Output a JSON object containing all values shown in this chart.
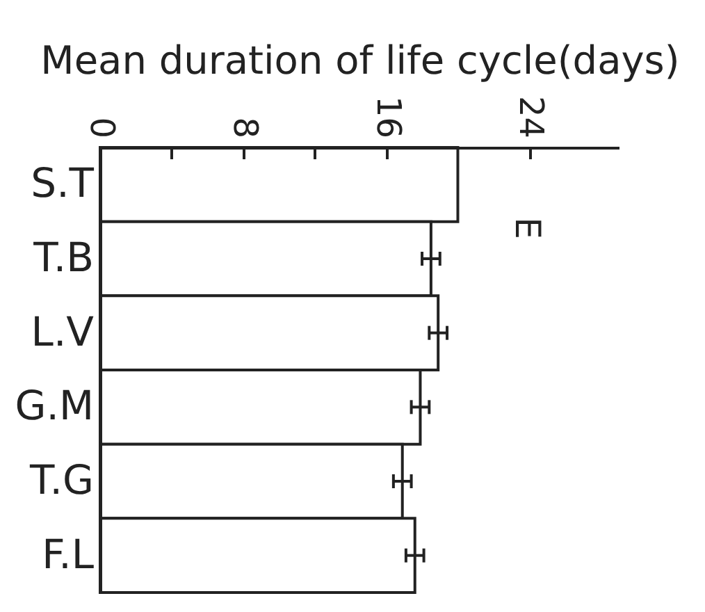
{
  "chart_data": {
    "type": "bar",
    "orientation": "horizontal",
    "xlabel": "Mean duration of life cycle(days)",
    "categories": [
      "S.T",
      "T.B",
      "L.V",
      "G.M",
      "T.G",
      "F.L"
    ],
    "values": [
      20.0,
      18.5,
      18.9,
      17.9,
      16.9,
      17.6
    ],
    "errors": [
      null,
      0.5,
      0.5,
      0.5,
      0.5,
      0.5
    ],
    "color": "#ffffff",
    "xlim": [
      0,
      29
    ],
    "xticks": [
      0,
      {
        "value": 4,
        "label": null
      },
      8,
      {
        "value": 12,
        "label": null
      },
      16,
      24
    ],
    "annotations": [
      "E"
    ]
  }
}
